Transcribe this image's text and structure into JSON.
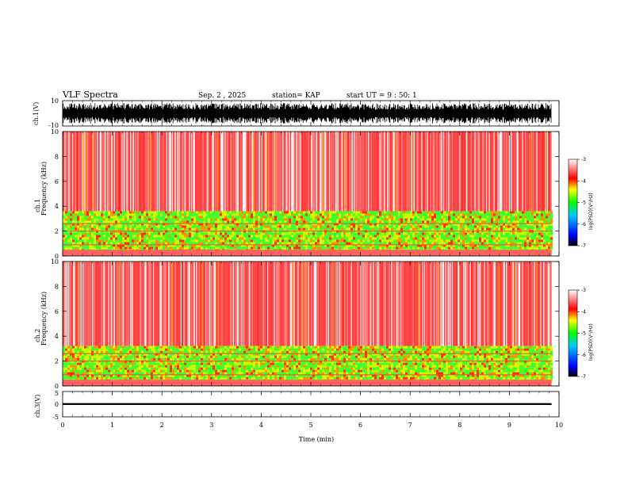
{
  "header": {
    "title": "VLF Spectra",
    "date": "Sep. 2 , 2025",
    "station": "station= KAP",
    "start": "start UT =  9 : 50: 1"
  },
  "colors": {
    "background": "#ffffff",
    "axis": "#000000",
    "scale": [
      "#000000",
      "#0000ff",
      "#00c8ff",
      "#00ff00",
      "#ffff00",
      "#ff0000",
      "#ffffff"
    ]
  },
  "chart_data": [
    {
      "type": "line",
      "name": "ch1-waveform",
      "ylabel": "ch.1(V)",
      "ylim": [
        -10,
        10
      ],
      "yticks": [
        "10",
        "-10"
      ],
      "x_range_min": [
        0,
        9.85
      ],
      "description_value": "broadband noise envelope roughly -8 to +8 V"
    },
    {
      "type": "heatmap",
      "name": "ch1-spectrogram",
      "ylabel": "ch.1\nFrequency (kHz)",
      "ylim": [
        0,
        10
      ],
      "yticks": [
        "0",
        "2",
        "4",
        "6",
        "8",
        "10"
      ],
      "x_range_min": [
        0,
        9.85
      ],
      "dominant_band_khz": [
        0.5,
        3.6
      ],
      "colorbar": {
        "label": "log(PSD)(V²/Hz)",
        "range": [
          -7,
          -3
        ],
        "ticks": [
          "-3",
          "-4",
          "-5",
          "-6",
          "-7"
        ]
      }
    },
    {
      "type": "heatmap",
      "name": "ch2-spectrogram",
      "ylabel": "ch.2\nFrequency (kHz)",
      "ylim": [
        0,
        10
      ],
      "yticks": [
        "0",
        "2",
        "4",
        "6",
        "8",
        "10"
      ],
      "x_range_min": [
        0,
        9.85
      ],
      "dominant_band_khz": [
        0.5,
        3.2
      ],
      "colorbar": {
        "label": "log(PSD)(V²/Hz)",
        "range": [
          -7,
          -3
        ],
        "ticks": [
          "-3",
          "-4",
          "-5",
          "-6",
          "-7"
        ]
      }
    },
    {
      "type": "line",
      "name": "ch3-waveform",
      "ylabel": "ch.3(V)",
      "ylim": [
        -5,
        5
      ],
      "yticks": [
        "5",
        "0",
        "-5"
      ],
      "x_range_min": [
        0,
        9.85
      ],
      "level_v": [
        -0.3,
        0.4
      ]
    }
  ],
  "xaxis": {
    "label": "Time  (min)",
    "ticks": [
      "0",
      "1",
      "2",
      "3",
      "4",
      "5",
      "6",
      "7",
      "8",
      "9",
      "10"
    ],
    "range": [
      0,
      10
    ]
  }
}
